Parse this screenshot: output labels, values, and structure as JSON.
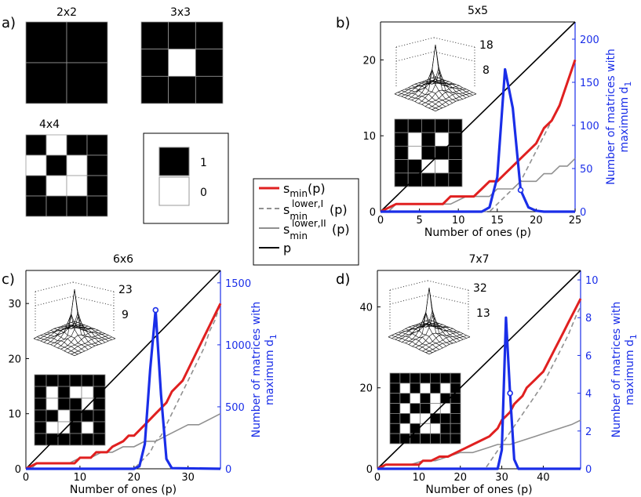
{
  "colors": {
    "smin": "#e02020",
    "lowerI": "#909090",
    "lowerII": "#909090",
    "p": "#000000",
    "count": "#1a2ee8"
  },
  "panel_a": {
    "label": "a)",
    "matrices": [
      {
        "title": "2x2",
        "grid": [
          [
            1,
            1
          ],
          [
            1,
            1
          ]
        ]
      },
      {
        "title": "3x3",
        "grid": [
          [
            1,
            1,
            1
          ],
          [
            1,
            0,
            1
          ],
          [
            1,
            1,
            1
          ]
        ]
      },
      {
        "title": "4x4",
        "grid": [
          [
            1,
            0,
            1,
            1
          ],
          [
            0,
            1,
            0,
            1
          ],
          [
            1,
            0,
            0,
            1
          ],
          [
            1,
            1,
            1,
            1
          ]
        ]
      }
    ],
    "key": [
      {
        "value": 1,
        "label": "1"
      },
      {
        "value": 0,
        "label": "0"
      }
    ]
  },
  "legend": {
    "entries": [
      {
        "main": "s",
        "sub": "min",
        "sup": "",
        "suffix": "(p)",
        "style": "solid",
        "color": "#e02020"
      },
      {
        "main": "s",
        "sub": "min",
        "sup": "lower,I",
        "suffix": "(p)",
        "style": "dashed",
        "color": "#909090"
      },
      {
        "main": "s",
        "sub": "min",
        "sup": "lower,II",
        "suffix": "(p)",
        "style": "solid",
        "color": "#909090"
      },
      {
        "main": "p",
        "sub": "",
        "sup": "",
        "suffix": "",
        "style": "solid",
        "color": "#000000"
      }
    ]
  },
  "chart_data": [
    {
      "type": "line",
      "label": "b)",
      "title": "5x5",
      "xlabel": "Number of ones (p)",
      "ylabel2": "Number of matrices with maximum d",
      "ylabel2_sub": "1",
      "xlim": [
        0,
        25
      ],
      "ylim": [
        0,
        25
      ],
      "y2lim": [
        0,
        220
      ],
      "xticks": [
        0,
        5,
        10,
        15,
        20,
        25
      ],
      "yticks": [
        0,
        10,
        20
      ],
      "y2ticks": [
        0,
        50,
        100,
        150,
        200
      ],
      "inset_labels": [
        "18",
        "8"
      ],
      "inset_matrix": [
        [
          1,
          1,
          1,
          1,
          1
        ],
        [
          1,
          0,
          1,
          0,
          1
        ],
        [
          1,
          0,
          1,
          1,
          1
        ],
        [
          1,
          1,
          0,
          0,
          1
        ],
        [
          1,
          1,
          1,
          1,
          1
        ]
      ],
      "series": [
        {
          "name": "p",
          "x": [
            0,
            25
          ],
          "y": [
            0,
            25
          ]
        },
        {
          "name": "s_min(p)",
          "x": [
            0,
            2,
            3,
            8,
            9,
            12,
            13,
            14,
            15,
            16,
            17,
            18,
            19,
            20,
            21,
            22,
            23,
            24,
            25
          ],
          "y": [
            0,
            1,
            1,
            1,
            2,
            2,
            3,
            4,
            4,
            5,
            6,
            7,
            8,
            9,
            11,
            12,
            14,
            17,
            20
          ]
        },
        {
          "name": "s_min^lower,I(p)",
          "x": [
            0,
            14,
            15,
            16,
            17,
            18,
            19,
            20,
            21,
            22,
            23,
            24,
            25
          ],
          "y": [
            0,
            0,
            1,
            2,
            3,
            4,
            6,
            8,
            10,
            12,
            14,
            17,
            20
          ]
        },
        {
          "name": "s_min^lower,II(p)",
          "x": [
            0,
            1,
            2,
            3,
            5,
            6,
            8,
            9,
            11,
            12,
            14,
            15,
            17,
            18,
            19,
            20,
            21,
            22,
            23,
            24,
            25
          ],
          "y": [
            0,
            0,
            1,
            1,
            1,
            1,
            1,
            1,
            2,
            2,
            2,
            3,
            3,
            4,
            4,
            4,
            5,
            5,
            6,
            6,
            7
          ]
        },
        {
          "name": "count",
          "axis": "right",
          "x": [
            0,
            13,
            14,
            15,
            16,
            17,
            18,
            19,
            20,
            21,
            25
          ],
          "y": [
            0,
            0,
            5,
            40,
            165,
            120,
            25,
            5,
            1,
            0,
            0
          ]
        }
      ],
      "marker": {
        "x": 18,
        "y": 25
      }
    },
    {
      "type": "line",
      "label": "c)",
      "title": "6x6",
      "xlabel": "Number of ones (p)",
      "ylabel2": "Number of matrices with maximum d",
      "ylabel2_sub": "1",
      "xlim": [
        0,
        36
      ],
      "ylim": [
        0,
        36
      ],
      "y2lim": [
        0,
        1600
      ],
      "xticks": [
        0,
        10,
        20,
        30
      ],
      "yticks": [
        0,
        10,
        20,
        30
      ],
      "y2ticks": [
        0,
        500,
        1000,
        1500
      ],
      "inset_labels": [
        "23",
        "9"
      ],
      "inset_matrix": [
        [
          1,
          1,
          1,
          1,
          1,
          1
        ],
        [
          1,
          0,
          1,
          0,
          0,
          1
        ],
        [
          1,
          0,
          1,
          1,
          0,
          1
        ],
        [
          1,
          1,
          0,
          1,
          1,
          1
        ],
        [
          1,
          0,
          0,
          1,
          0,
          1
        ],
        [
          1,
          1,
          1,
          1,
          1,
          1
        ]
      ],
      "series": [
        {
          "name": "p",
          "x": [
            0,
            36
          ],
          "y": [
            0,
            36
          ]
        },
        {
          "name": "s_min(p)",
          "x": [
            0,
            2,
            9,
            10,
            12,
            13,
            15,
            16,
            18,
            19,
            20,
            21,
            22,
            23,
            24,
            25,
            26,
            27,
            28,
            29,
            30,
            31,
            32,
            33,
            34,
            35,
            36
          ],
          "y": [
            0,
            1,
            1,
            2,
            2,
            3,
            3,
            4,
            5,
            6,
            6,
            7,
            8,
            9,
            10,
            11,
            12,
            14,
            15,
            16,
            18,
            20,
            22,
            24,
            26,
            28,
            30
          ]
        },
        {
          "name": "s_min^lower,I(p)",
          "x": [
            0,
            20,
            21,
            22,
            23,
            24,
            25,
            26,
            27,
            28,
            29,
            30,
            31,
            32,
            33,
            34,
            35,
            36
          ],
          "y": [
            0,
            0,
            1,
            2,
            3,
            5,
            6,
            8,
            10,
            12,
            14,
            16,
            18,
            20,
            22,
            25,
            27,
            30
          ]
        },
        {
          "name": "s_min^lower,II(p)",
          "x": [
            0,
            1,
            2,
            4,
            5,
            8,
            10,
            12,
            14,
            16,
            18,
            20,
            22,
            24,
            26,
            28,
            30,
            32,
            34,
            36
          ],
          "y": [
            0,
            0,
            1,
            1,
            1,
            1,
            2,
            2,
            3,
            3,
            4,
            4,
            5,
            5,
            6,
            7,
            8,
            8,
            9,
            10
          ]
        },
        {
          "name": "count",
          "axis": "right",
          "x": [
            0,
            20,
            21,
            22,
            23,
            24,
            25,
            26,
            27,
            36
          ],
          "y": [
            0,
            0,
            20,
            200,
            800,
            1280,
            600,
            80,
            5,
            0
          ]
        }
      ],
      "marker": {
        "x": 24,
        "y": 1280
      }
    },
    {
      "type": "line",
      "label": "d)",
      "title": "7x7",
      "xlabel": "Number of ones (p)",
      "ylabel2": "Number of matrices with maximum d",
      "ylabel2_sub": "1",
      "xlim": [
        0,
        49
      ],
      "ylim": [
        0,
        49
      ],
      "y2lim": [
        0,
        10.5
      ],
      "xticks": [
        0,
        10,
        20,
        30,
        40
      ],
      "yticks": [
        0,
        20,
        40
      ],
      "y2ticks": [
        0,
        2,
        4,
        6,
        8,
        10
      ],
      "inset_labels": [
        "32",
        "13"
      ],
      "inset_matrix": [
        [
          1,
          1,
          1,
          1,
          1,
          1,
          1
        ],
        [
          1,
          0,
          1,
          0,
          1,
          0,
          1
        ],
        [
          1,
          1,
          0,
          1,
          0,
          1,
          1
        ],
        [
          1,
          0,
          1,
          1,
          0,
          0,
          1
        ],
        [
          1,
          1,
          0,
          0,
          1,
          1,
          1
        ],
        [
          1,
          0,
          1,
          0,
          0,
          1,
          1
        ],
        [
          1,
          1,
          1,
          1,
          1,
          1,
          1
        ]
      ],
      "series": [
        {
          "name": "p",
          "x": [
            0,
            49
          ],
          "y": [
            0,
            49
          ]
        },
        {
          "name": "s_min(p)",
          "x": [
            0,
            2,
            10,
            11,
            13,
            15,
            17,
            19,
            21,
            23,
            25,
            27,
            28,
            29,
            30,
            31,
            32,
            33,
            34,
            35,
            36,
            37,
            38,
            39,
            40,
            41,
            42,
            43,
            44,
            45,
            46,
            47,
            48,
            49
          ],
          "y": [
            0,
            1,
            1,
            2,
            2,
            3,
            3,
            4,
            5,
            6,
            7,
            8,
            9,
            10,
            12,
            13,
            14,
            16,
            17,
            18,
            20,
            21,
            22,
            23,
            24,
            26,
            28,
            30,
            32,
            34,
            36,
            38,
            40,
            42
          ]
        },
        {
          "name": "s_min^lower,I(p)",
          "x": [
            0,
            26,
            28,
            30,
            32,
            34,
            36,
            38,
            40,
            42,
            44,
            46,
            48,
            49
          ],
          "y": [
            0,
            0,
            3,
            6,
            9,
            12,
            15,
            18,
            21,
            25,
            29,
            33,
            38,
            40
          ]
        },
        {
          "name": "s_min^lower,II(p)",
          "x": [
            0,
            1,
            2,
            5,
            8,
            11,
            14,
            17,
            20,
            23,
            26,
            29,
            32,
            35,
            38,
            41,
            44,
            47,
            49
          ],
          "y": [
            0,
            0,
            1,
            1,
            1,
            2,
            2,
            3,
            4,
            4,
            5,
            6,
            6,
            7,
            8,
            9,
            10,
            11,
            12
          ]
        },
        {
          "name": "count",
          "axis": "right",
          "x": [
            0,
            29,
            30,
            31,
            32,
            33,
            34,
            49
          ],
          "y": [
            0,
            0,
            1,
            8,
            4,
            0.5,
            0,
            0
          ]
        }
      ],
      "marker": {
        "x": 32,
        "y": 4
      }
    }
  ]
}
